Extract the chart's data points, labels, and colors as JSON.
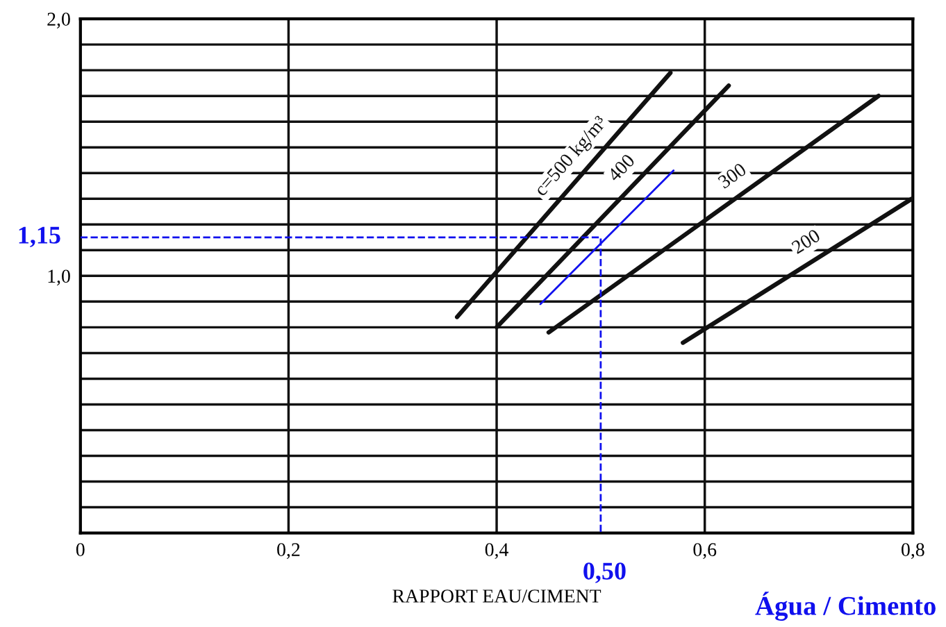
{
  "chart_data": {
    "type": "line",
    "xlabel": "RAPPORT EAU/CIMENT",
    "xlim": [
      0,
      0.8
    ],
    "ylim": [
      0,
      2.0
    ],
    "xticks": [
      0,
      {
        "value": 0.2,
        "label": "0,2"
      },
      {
        "value": 0.4,
        "label": "0,4"
      },
      {
        "value": 0.6,
        "label": "0,6"
      },
      {
        "value": 0.8,
        "label": "0,8"
      }
    ],
    "yticks": [
      {
        "value": 0.1,
        "label": null
      },
      {
        "value": 0.2,
        "label": null
      },
      {
        "value": 0.3,
        "label": null
      },
      {
        "value": 0.4,
        "label": null
      },
      {
        "value": 0.5,
        "label": null
      },
      {
        "value": 0.6,
        "label": null
      },
      {
        "value": 0.7,
        "label": null
      },
      {
        "value": 0.8,
        "label": null
      },
      {
        "value": 0.9,
        "label": null
      },
      {
        "value": 1.0,
        "label": "1,0"
      },
      {
        "value": 1.1,
        "label": null
      },
      {
        "value": 1.2,
        "label": null
      },
      {
        "value": 1.3,
        "label": null
      },
      {
        "value": 1.4,
        "label": null
      },
      {
        "value": 1.5,
        "label": null
      },
      {
        "value": 1.6,
        "label": null
      },
      {
        "value": 1.7,
        "label": null
      },
      {
        "value": 1.8,
        "label": null
      },
      {
        "value": 1.9,
        "label": null
      },
      {
        "value": 2.0,
        "label": "2,0"
      }
    ],
    "grid": true,
    "line_style": "solid",
    "series": [
      {
        "name": "c=500 kg/m³",
        "color": "#111111",
        "x": [
          0.362,
          0.567
        ],
        "values": [
          0.84,
          1.79
        ]
      },
      {
        "name": "400",
        "color": "#111111",
        "x": [
          0.4,
          0.623
        ],
        "values": [
          0.8,
          1.74
        ]
      },
      {
        "name": "300",
        "color": "#111111",
        "x": [
          0.45,
          0.767
        ],
        "values": [
          0.78,
          1.7
        ]
      },
      {
        "name": "200",
        "color": "#111111",
        "x": [
          0.579,
          0.799
        ],
        "values": [
          0.74,
          1.3
        ]
      },
      {
        "color": "#1010ee",
        "x": [
          0.442,
          0.57
        ],
        "values": [
          0.89,
          1.41
        ]
      },
      {
        "color": "#1010ee",
        "line_style": "dashed",
        "x": [
          0,
          0.5,
          0.5
        ],
        "values": [
          1.15,
          1.15,
          0
        ]
      }
    ],
    "annotations": [
      {
        "text": "1,15",
        "x": 0,
        "y": 1.15
      },
      {
        "text": "0,50",
        "x": 0.5,
        "y": 0
      },
      "Água / Cimento"
    ]
  }
}
